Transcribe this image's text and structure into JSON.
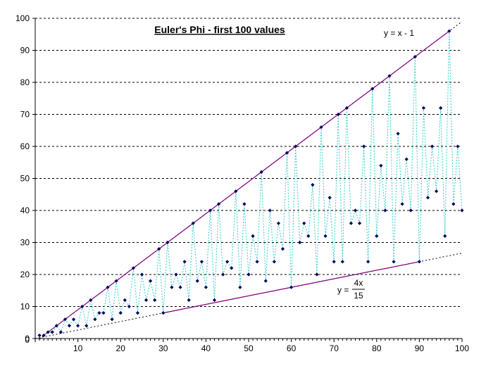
{
  "chart_data": {
    "type": "scatter",
    "title": "Euler's Phi - first 100 values",
    "xlabel": "",
    "ylabel": "",
    "xlim": [
      0,
      100
    ],
    "ylim": [
      0,
      100
    ],
    "x_ticks": [
      "10",
      "20",
      "30",
      "40",
      "50",
      "60",
      "70",
      "80",
      "90",
      "100"
    ],
    "y_ticks": [
      "0",
      "10",
      "20",
      "30",
      "40",
      "50",
      "60",
      "70",
      "80",
      "90",
      "100"
    ],
    "grid": "horizontal dashed",
    "series": [
      {
        "x": [
          1,
          2,
          3,
          4,
          5,
          6,
          7,
          8,
          9,
          10,
          11,
          12,
          13,
          14,
          15,
          16,
          17,
          18,
          19,
          20,
          21,
          22,
          23,
          24,
          25,
          26,
          27,
          28,
          29,
          30,
          31,
          32,
          33,
          34,
          35,
          36,
          37,
          38,
          39,
          40,
          41,
          42,
          43,
          44,
          45,
          46,
          47,
          48,
          49,
          50,
          51,
          52,
          53,
          54,
          55,
          56,
          57,
          58,
          59,
          60,
          61,
          62,
          63,
          64,
          65,
          66,
          67,
          68,
          69,
          70,
          71,
          72,
          73,
          74,
          75,
          76,
          77,
          78,
          79,
          80,
          81,
          82,
          83,
          84,
          85,
          86,
          87,
          88,
          89,
          90,
          91,
          92,
          93,
          94,
          95,
          96,
          97,
          98,
          99,
          100
        ],
        "values": [
          1,
          1,
          2,
          2,
          4,
          2,
          6,
          4,
          6,
          4,
          10,
          4,
          12,
          6,
          8,
          8,
          16,
          6,
          18,
          8,
          12,
          10,
          22,
          8,
          20,
          12,
          18,
          12,
          28,
          8,
          30,
          16,
          20,
          16,
          24,
          12,
          36,
          18,
          24,
          16,
          40,
          12,
          42,
          20,
          24,
          22,
          46,
          16,
          42,
          20,
          32,
          24,
          52,
          18,
          40,
          24,
          36,
          28,
          58,
          16,
          60,
          30,
          36,
          32,
          48,
          20,
          66,
          32,
          44,
          24,
          70,
          24,
          72,
          36,
          40,
          36,
          60,
          24,
          78,
          32,
          54,
          40,
          82,
          24,
          64,
          42,
          56,
          40,
          88,
          24,
          72,
          44,
          60,
          46,
          72,
          32,
          96,
          42,
          60,
          40
        ]
      }
    ],
    "reference_lines": [
      {
        "label_left": "y = x - 1",
        "slope": 1,
        "intercept": -1
      },
      {
        "label_left": "y =",
        "numerator": "4x",
        "denominator": "15",
        "slope": 0.26667,
        "intercept": 0
      }
    ],
    "colors": {
      "points": "#00005e",
      "connector": "#33cccc",
      "bound_lines": "#800080",
      "dotted": "#000000",
      "grid": "#000000"
    }
  }
}
